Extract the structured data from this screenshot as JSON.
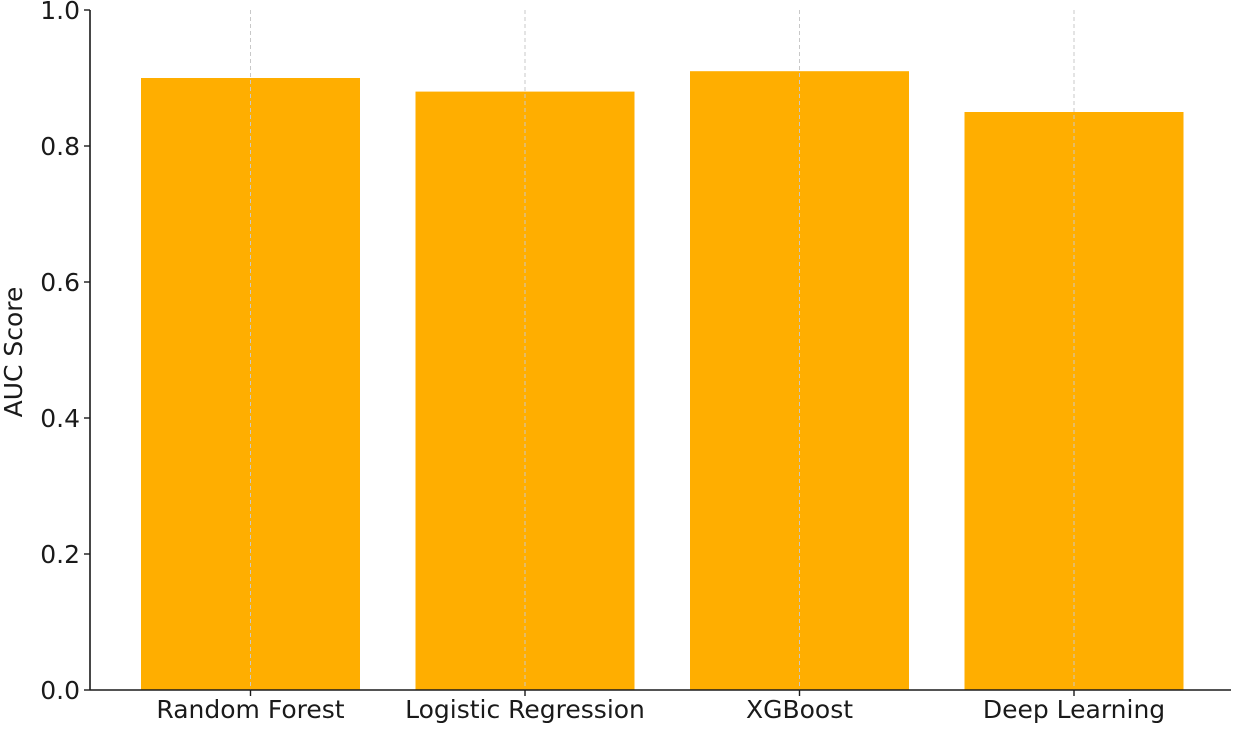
{
  "chart_data": {
    "type": "bar",
    "title": "",
    "xlabel": "",
    "ylabel": "AUC Score",
    "categories": [
      "Random Forest",
      "Logistic Regression",
      "XGBoost",
      "Deep Learning"
    ],
    "values": [
      0.9,
      0.88,
      0.91,
      0.85
    ],
    "ylim": [
      0.0,
      1.0
    ],
    "yticks": [
      "0.0",
      "0.2",
      "0.4",
      "0.6",
      "0.8",
      "1.0"
    ],
    "grid": "vertical dashed at category centers",
    "bar_color": "#FFAE00",
    "grid_color": "#c8c8c8",
    "axis_color": "#1a1a1a"
  }
}
